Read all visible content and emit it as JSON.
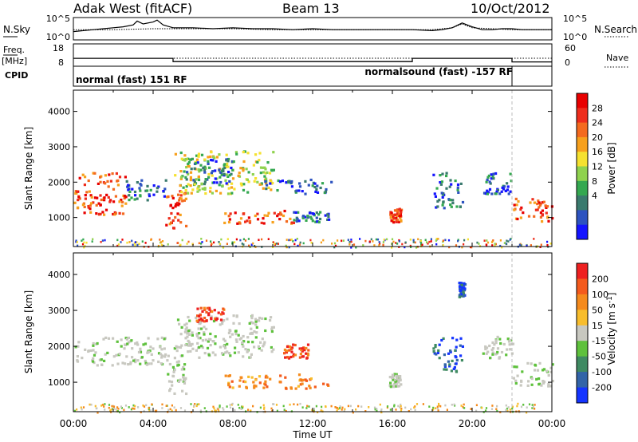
{
  "header": {
    "radar": "Adak West (fitACF)",
    "beam": "Beam 13",
    "date": "10/Oct/2012"
  },
  "noise_panel": {
    "left_label": "N.Sky",
    "right_label": "N.Search",
    "ticks": [
      "10^5",
      "10^0"
    ],
    "sky_noise": {
      "x": [
        0,
        0.5,
        1,
        1.5,
        2,
        2.5,
        3,
        3.2,
        3.5,
        4,
        4.2,
        4.5,
        5,
        6,
        7,
        8,
        9,
        10,
        11,
        12,
        13,
        14,
        15,
        16,
        17,
        18,
        18.5,
        19,
        19.5,
        20,
        20.5,
        21,
        21.5,
        22,
        22.5,
        23,
        24
      ],
      "level": [
        0.35,
        0.4,
        0.45,
        0.5,
        0.55,
        0.6,
        0.7,
        0.9,
        0.75,
        0.85,
        0.95,
        0.7,
        0.55,
        0.55,
        0.5,
        0.55,
        0.5,
        0.5,
        0.45,
        0.5,
        0.45,
        0.45,
        0.45,
        0.45,
        0.45,
        0.4,
        0.45,
        0.55,
        0.8,
        0.6,
        0.45,
        0.45,
        0.5,
        0.5,
        0.45,
        0.45,
        0.45
      ]
    },
    "search_noise": {
      "x": [
        0,
        2,
        4,
        6,
        8,
        10,
        12,
        14,
        16,
        18,
        19,
        19.5,
        20,
        22,
        24
      ],
      "level": [
        0.45,
        0.45,
        0.5,
        0.5,
        0.5,
        0.45,
        0.45,
        0.45,
        0.45,
        0.45,
        0.55,
        0.75,
        0.55,
        0.45,
        0.45
      ]
    }
  },
  "freq_panel": {
    "left_label": "Freq.",
    "unit": "[MHz]",
    "left_ticks": [
      "18",
      "8"
    ],
    "right_label": "Nave",
    "right_ticks": [
      "60",
      "0"
    ],
    "freq_steps": [
      {
        "start": 0,
        "end": 5,
        "value": 11.3
      },
      {
        "start": 5,
        "end": 17,
        "value": 9.6
      },
      {
        "start": 17,
        "end": 22,
        "value": 11.3
      },
      {
        "start": 22,
        "end": 24,
        "value": 9.4
      }
    ],
    "nave_level": 20
  },
  "cpid_panel": {
    "label": "CPID",
    "left_mode": "normal (fast) 151 RF",
    "right_mode": "normalsound (fast) -157 RF",
    "switch_hour": 22
  },
  "chart_data": [
    {
      "type": "heatmap",
      "title": "Power",
      "ylabel": "Slant Range [km]",
      "ylim": [
        180,
        4600
      ],
      "xlim": [
        0,
        24
      ],
      "y_ticks": [
        1000,
        2000,
        3000,
        4000
      ],
      "colorbar": {
        "label": "Power [dB]",
        "ticks": [
          "4",
          "8",
          "12",
          "16",
          "20",
          "24",
          "28"
        ],
        "colors": [
          "#1414ff",
          "#2d53c0",
          "#3a7a6e",
          "#34a850",
          "#8fd24e",
          "#f5e12f",
          "#f7a01c",
          "#f46a1e",
          "#ee2d1c",
          "#e80000"
        ]
      },
      "echo_regions": [
        {
          "t0": 0.0,
          "t1": 2.6,
          "r0": 1100,
          "r1": 2300,
          "power": "strong"
        },
        {
          "t0": 2.6,
          "t1": 4.6,
          "r0": 1500,
          "r1": 2100,
          "power": "weak"
        },
        {
          "t0": 4.6,
          "t1": 5.6,
          "r0": 700,
          "r1": 1800,
          "power": "strong"
        },
        {
          "t0": 5.0,
          "t1": 10.0,
          "r0": 1700,
          "r1": 2900,
          "power": "medium"
        },
        {
          "t0": 5.6,
          "t1": 8.0,
          "r0": 1900,
          "r1": 2700,
          "power": "weak"
        },
        {
          "t0": 7.5,
          "t1": 11.0,
          "r0": 850,
          "r1": 1250,
          "power": "strong"
        },
        {
          "t0": 11.0,
          "t1": 12.8,
          "r0": 900,
          "r1": 1200,
          "power": "weak"
        },
        {
          "t0": 9.5,
          "t1": 13.0,
          "r0": 1700,
          "r1": 2100,
          "power": "weak"
        },
        {
          "t0": 15.8,
          "t1": 16.4,
          "r0": 900,
          "r1": 1300,
          "power": "strong"
        },
        {
          "t0": 18.0,
          "t1": 19.5,
          "r0": 1300,
          "r1": 2300,
          "power": "weak"
        },
        {
          "t0": 20.5,
          "t1": 22.0,
          "r0": 1700,
          "r1": 2300,
          "power": "weak"
        },
        {
          "t0": 22.0,
          "t1": 24.0,
          "r0": 900,
          "r1": 1600,
          "power": "strong"
        }
      ]
    },
    {
      "type": "heatmap",
      "title": "Velocity",
      "xlabel": "Time UT",
      "ylabel": "Slant Range [km]",
      "ylim": [
        180,
        4600
      ],
      "xlim": [
        0,
        24
      ],
      "x_ticks": [
        "00:00",
        "04:00",
        "08:00",
        "12:00",
        "16:00",
        "20:00",
        "00:00"
      ],
      "y_ticks": [
        1000,
        2000,
        3000,
        4000
      ],
      "colorbar": {
        "label": "Velocity [m s-1]",
        "ticks": [
          "200",
          "100",
          "50",
          "15",
          "-15",
          "-50",
          "-100",
          "-200"
        ],
        "colors": [
          "#1434ff",
          "#3264a8",
          "#3f8a62",
          "#5ec13c",
          "#c8c8c0",
          "#f8bd2c",
          "#f58a1c",
          "#f45a1c",
          "#ee2020"
        ]
      },
      "echo_regions": [
        {
          "t0": 0.0,
          "t1": 4.6,
          "r0": 1500,
          "r1": 2300,
          "velocity": "ground"
        },
        {
          "t0": 4.6,
          "t1": 5.6,
          "r0": 700,
          "r1": 1800,
          "velocity": "ground"
        },
        {
          "t0": 5.0,
          "t1": 10.0,
          "r0": 1700,
          "r1": 2900,
          "velocity": "ground"
        },
        {
          "t0": 7.5,
          "t1": 12.8,
          "r0": 850,
          "r1": 1250,
          "velocity": "away"
        },
        {
          "t0": 6.0,
          "t1": 7.5,
          "r0": 2700,
          "r1": 3100,
          "velocity": "fast-away"
        },
        {
          "t0": 10.5,
          "t1": 11.8,
          "r0": 1700,
          "r1": 2100,
          "velocity": "fast-away"
        },
        {
          "t0": 15.8,
          "t1": 16.4,
          "r0": 900,
          "r1": 1300,
          "velocity": "ground"
        },
        {
          "t0": 18.0,
          "t1": 19.5,
          "r0": 1300,
          "r1": 2300,
          "velocity": "toward"
        },
        {
          "t0": 19.3,
          "t1": 19.6,
          "r0": 3400,
          "r1": 3800,
          "velocity": "toward"
        },
        {
          "t0": 20.5,
          "t1": 22.0,
          "r0": 1700,
          "r1": 2300,
          "velocity": "ground"
        },
        {
          "t0": 22.0,
          "t1": 24.0,
          "r0": 900,
          "r1": 1600,
          "velocity": "ground"
        }
      ]
    }
  ]
}
